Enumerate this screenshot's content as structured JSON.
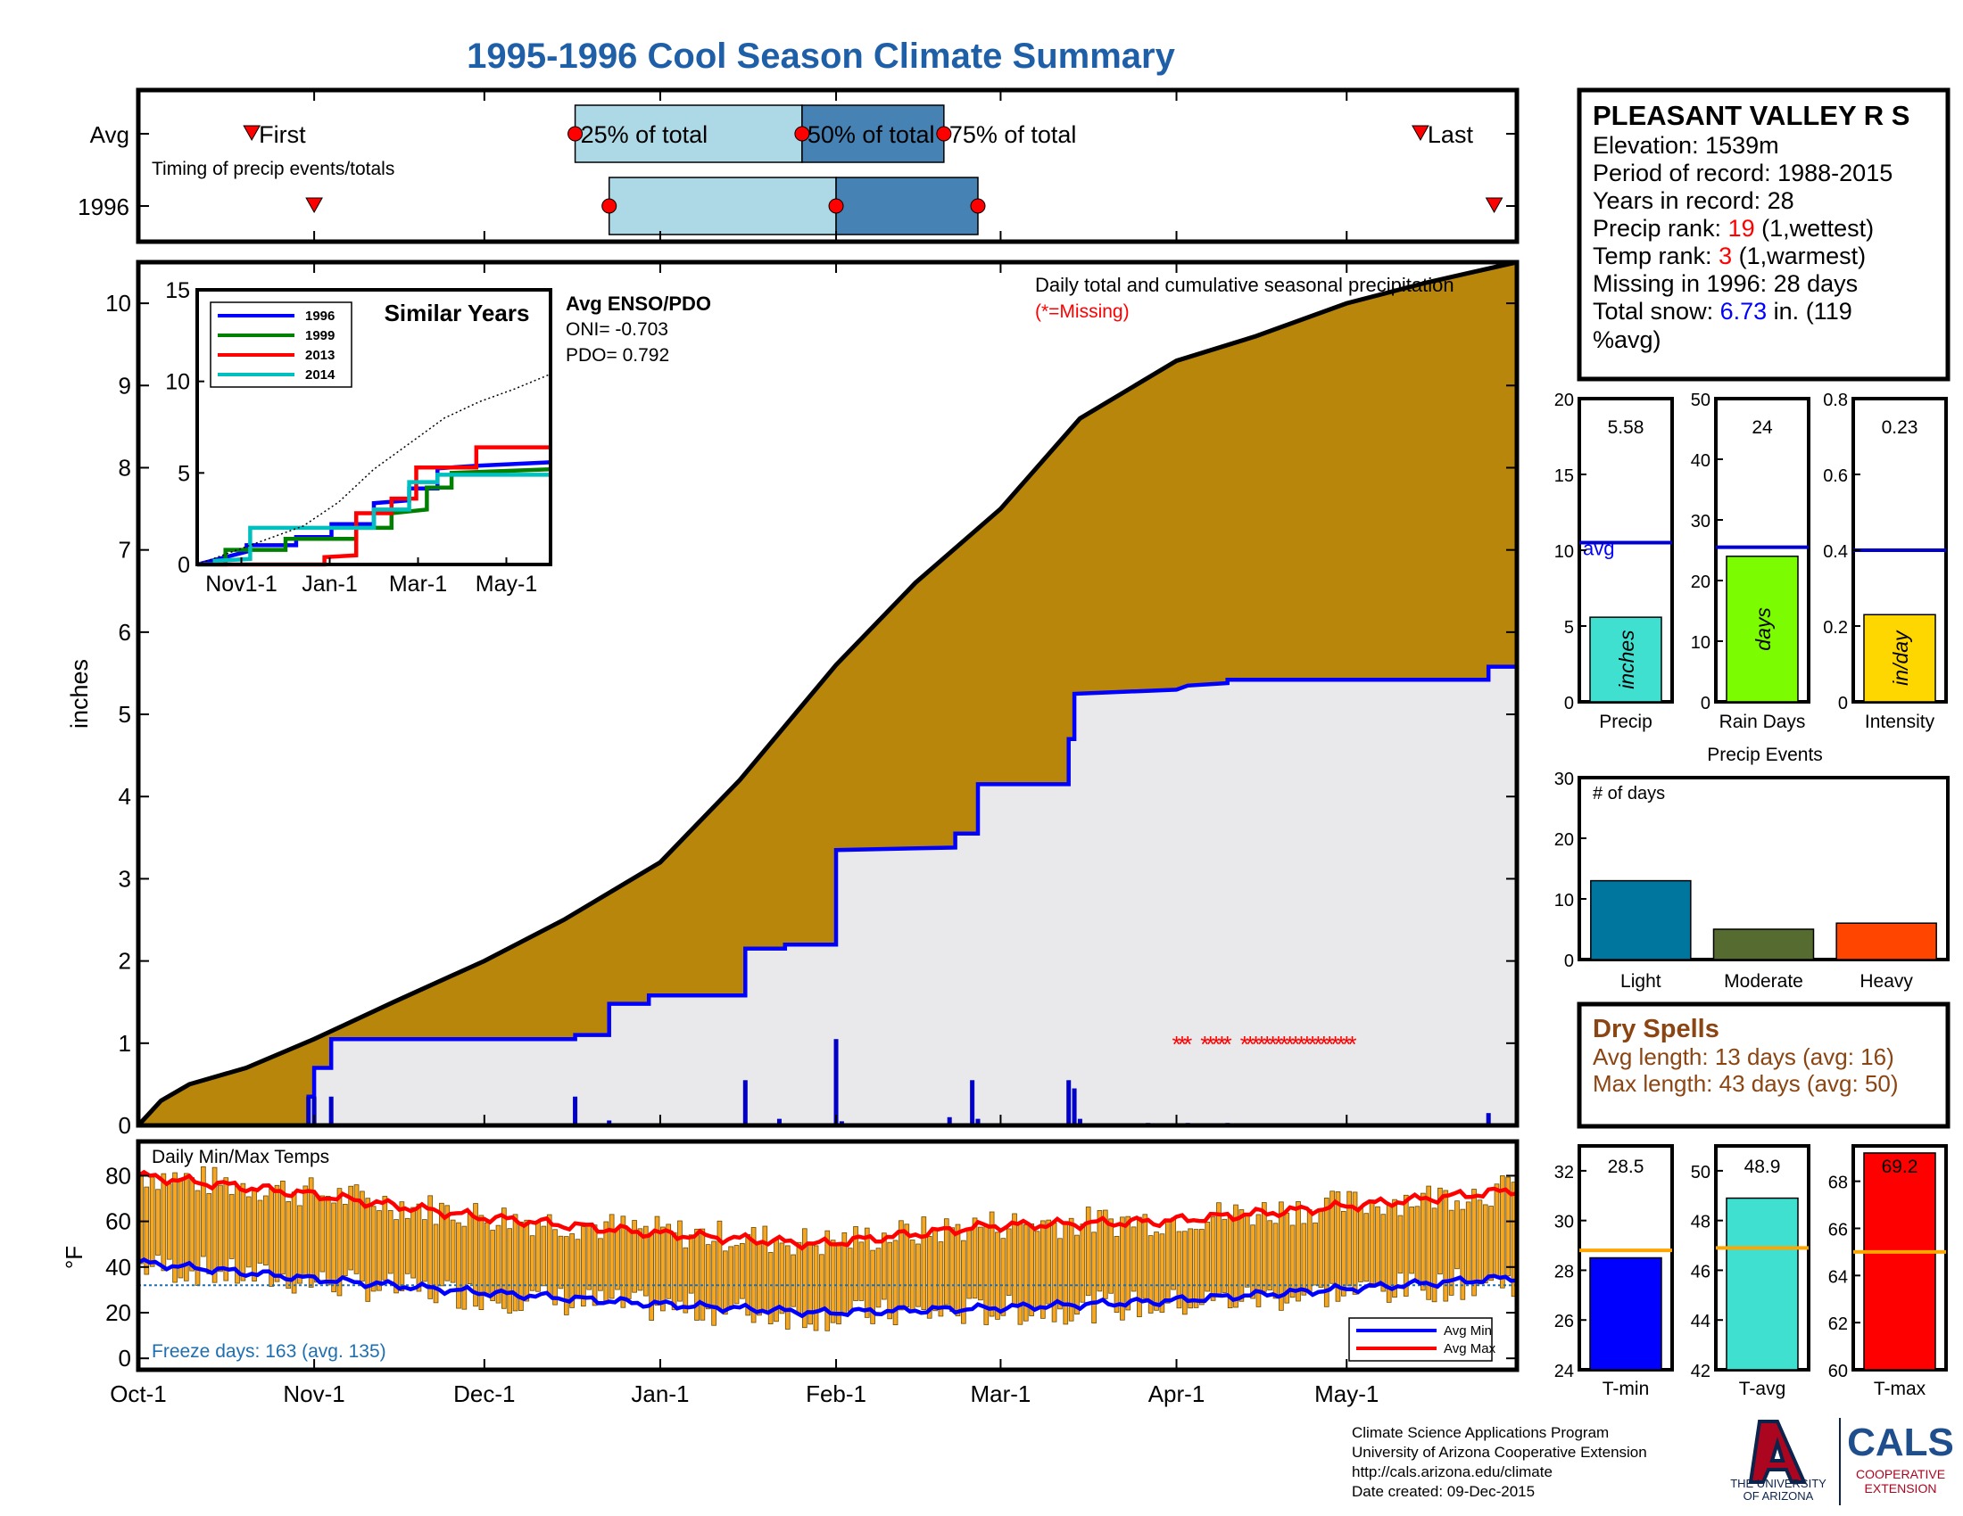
{
  "title": "1995-1996 Cool Season Climate Summary",
  "colors": {
    "title": "#1f5fa8",
    "avg_precip_fill": "#b8860b",
    "season_fill": "#e9e8ea",
    "line_1996": "#0000ff",
    "line_1999": "#008000",
    "line_2013": "#ff0000",
    "line_2014": "#00bfbf",
    "timing_light": "#add8e6",
    "timing_dark": "#4682b4",
    "marker_red": "#ff0000",
    "precip_bar": "#40e0d0",
    "raindays_bar": "#7cfc00",
    "intensity_bar": "#ffd700",
    "light_bar": "#00769e",
    "moderate_bar": "#556b2f",
    "heavy_bar": "#ff4500",
    "dry_text": "#8b4513",
    "temp_bar": "#f5a623",
    "tmin_bar": "#0000ff",
    "tavg_bar": "#40e0d0",
    "tmax_bar": "#ff0000",
    "temp_avg_line": "#ffa500"
  },
  "timing": {
    "row_labels": [
      "Avg",
      "1996"
    ],
    "avg_labels": {
      "first": "First",
      "p25": "25% of total",
      "p50": "50% of total",
      "p75": "75% of total",
      "last": "Last"
    },
    "note": "Timing of precip events/totals",
    "avg": {
      "first": "1995-10-21",
      "p25": "1995-12-17",
      "p50": "1996-01-26",
      "p75": "1996-02-20",
      "last": "1996-05-14"
    },
    "y1996": {
      "first": "1995-11-01",
      "p25": "1995-12-23",
      "p50": "1996-02-01",
      "p75": "1996-02-26",
      "last": "1996-05-27"
    }
  },
  "main_chart": {
    "ylabel": "inches",
    "ylim": [
      0,
      10.5
    ],
    "yticks": [
      0,
      1,
      2,
      3,
      4,
      5,
      6,
      7,
      8,
      9,
      10
    ],
    "xticks": [
      "Oct-1",
      "Nov-1",
      "Dec-1",
      "Jan-1",
      "Feb-1",
      "Mar-1",
      "Apr-1",
      "May-1"
    ],
    "header": "Daily total and cumulative seasonal precipitation",
    "missing_note": "(*=Missing)",
    "avg_cumulative": [
      {
        "x": "1995-10-01",
        "y": 0.0
      },
      {
        "x": "1995-10-05",
        "y": 0.3
      },
      {
        "x": "1995-10-10",
        "y": 0.5
      },
      {
        "x": "1995-10-20",
        "y": 0.7
      },
      {
        "x": "1995-11-01",
        "y": 1.05
      },
      {
        "x": "1995-11-15",
        "y": 1.5
      },
      {
        "x": "1995-12-01",
        "y": 2.0
      },
      {
        "x": "1995-12-15",
        "y": 2.5
      },
      {
        "x": "1996-01-01",
        "y": 3.2
      },
      {
        "x": "1996-01-15",
        "y": 4.2
      },
      {
        "x": "1996-02-01",
        "y": 5.6
      },
      {
        "x": "1996-02-15",
        "y": 6.6
      },
      {
        "x": "1996-03-01",
        "y": 7.5
      },
      {
        "x": "1996-03-15",
        "y": 8.6
      },
      {
        "x": "1996-04-01",
        "y": 9.3
      },
      {
        "x": "1996-04-15",
        "y": 9.6
      },
      {
        "x": "1996-05-01",
        "y": 10.0
      },
      {
        "x": "1996-05-15",
        "y": 10.25
      },
      {
        "x": "1996-05-31",
        "y": 10.5
      }
    ],
    "season_1996": [
      {
        "x": "1995-10-01",
        "y": 0.0
      },
      {
        "x": "1995-10-31",
        "y": 0.0
      },
      {
        "x": "1995-10-31",
        "y": 0.35
      },
      {
        "x": "1995-11-01",
        "y": 0.35
      },
      {
        "x": "1995-11-01",
        "y": 0.7
      },
      {
        "x": "1995-11-04",
        "y": 0.7
      },
      {
        "x": "1995-11-04",
        "y": 1.05
      },
      {
        "x": "1995-12-17",
        "y": 1.05
      },
      {
        "x": "1995-12-17",
        "y": 1.1
      },
      {
        "x": "1995-12-23",
        "y": 1.1
      },
      {
        "x": "1995-12-23",
        "y": 1.48
      },
      {
        "x": "1995-12-30",
        "y": 1.48
      },
      {
        "x": "1995-12-30",
        "y": 1.58
      },
      {
        "x": "1996-01-16",
        "y": 1.58
      },
      {
        "x": "1996-01-16",
        "y": 2.15
      },
      {
        "x": "1996-01-23",
        "y": 2.15
      },
      {
        "x": "1996-01-23",
        "y": 2.2
      },
      {
        "x": "1996-02-01",
        "y": 2.2
      },
      {
        "x": "1996-02-01",
        "y": 3.35
      },
      {
        "x": "1996-02-22",
        "y": 3.38
      },
      {
        "x": "1996-02-22",
        "y": 3.55
      },
      {
        "x": "1996-02-26",
        "y": 3.55
      },
      {
        "x": "1996-02-26",
        "y": 4.15
      },
      {
        "x": "1996-03-13",
        "y": 4.15
      },
      {
        "x": "1996-03-13",
        "y": 4.7
      },
      {
        "x": "1996-03-14",
        "y": 4.7
      },
      {
        "x": "1996-03-14",
        "y": 5.25
      },
      {
        "x": "1996-04-01",
        "y": 5.3
      },
      {
        "x": "1996-04-03",
        "y": 5.35
      },
      {
        "x": "1996-04-10",
        "y": 5.38
      },
      {
        "x": "1996-04-10",
        "y": 5.42
      },
      {
        "x": "1996-05-26",
        "y": 5.42
      },
      {
        "x": "1996-05-26",
        "y": 5.58
      },
      {
        "x": "1996-05-31",
        "y": 5.58
      }
    ],
    "daily_1996": [
      {
        "x": "1995-10-31",
        "y": 0.35
      },
      {
        "x": "1995-11-01",
        "y": 0.35
      },
      {
        "x": "1995-11-04",
        "y": 0.35
      },
      {
        "x": "1995-12-17",
        "y": 0.35
      },
      {
        "x": "1995-12-23",
        "y": 0.06
      },
      {
        "x": "1996-01-16",
        "y": 0.55
      },
      {
        "x": "1996-01-22",
        "y": 0.08
      },
      {
        "x": "1996-02-01",
        "y": 1.05
      },
      {
        "x": "1996-02-02",
        "y": 0.05
      },
      {
        "x": "1996-02-21",
        "y": 0.1
      },
      {
        "x": "1996-02-25",
        "y": 0.55
      },
      {
        "x": "1996-02-26",
        "y": 0.08
      },
      {
        "x": "1996-03-13",
        "y": 0.55
      },
      {
        "x": "1996-03-14",
        "y": 0.45
      },
      {
        "x": "1996-03-15",
        "y": 0.08
      },
      {
        "x": "1996-03-27",
        "y": 0.03
      },
      {
        "x": "1996-04-03",
        "y": 0.03
      },
      {
        "x": "1996-04-10",
        "y": 0.03
      },
      {
        "x": "1996-05-26",
        "y": 0.15
      }
    ],
    "missing_dates": [
      "1996-04-01",
      "1996-04-02",
      "1996-04-03",
      "1996-04-06",
      "1996-04-07",
      "1996-04-08",
      "1996-04-09",
      "1996-04-10",
      "1996-04-13",
      "1996-04-14",
      "1996-04-15",
      "1996-04-16",
      "1996-04-17",
      "1996-04-18",
      "1996-04-19",
      "1996-04-20",
      "1996-04-21",
      "1996-04-22",
      "1996-04-23",
      "1996-04-24",
      "1996-04-25",
      "1996-04-26",
      "1996-04-27",
      "1996-04-28",
      "1996-04-29",
      "1996-04-30",
      "1996-05-01",
      "1996-05-02"
    ]
  },
  "inset": {
    "title": "Similar Years",
    "ylim": [
      0,
      15
    ],
    "yticks": [
      0,
      5,
      10,
      15
    ],
    "xticks": [
      "Nov1-1",
      "Jan-1",
      "Mar-1",
      "May-1"
    ],
    "series": [
      {
        "name": "1996",
        "color": "#0000ff",
        "points": [
          [
            0,
            0
          ],
          [
            0.14,
            0.7
          ],
          [
            0.14,
            1.05
          ],
          [
            0.28,
            1.05
          ],
          [
            0.28,
            1.5
          ],
          [
            0.38,
            1.5
          ],
          [
            0.38,
            2.2
          ],
          [
            0.5,
            2.2
          ],
          [
            0.5,
            3.35
          ],
          [
            0.6,
            3.5
          ],
          [
            0.6,
            4.15
          ],
          [
            0.68,
            4.15
          ],
          [
            0.68,
            5.25
          ],
          [
            0.8,
            5.4
          ],
          [
            1,
            5.58
          ]
        ]
      },
      {
        "name": "1999",
        "color": "#008000",
        "points": [
          [
            0,
            0
          ],
          [
            0.08,
            0
          ],
          [
            0.08,
            0.8
          ],
          [
            0.25,
            0.8
          ],
          [
            0.25,
            1.4
          ],
          [
            0.45,
            1.4
          ],
          [
            0.45,
            2.0
          ],
          [
            0.55,
            2.0
          ],
          [
            0.55,
            2.8
          ],
          [
            0.65,
            3.0
          ],
          [
            0.65,
            4.2
          ],
          [
            0.72,
            4.2
          ],
          [
            0.72,
            5.0
          ],
          [
            1,
            5.2
          ]
        ]
      },
      {
        "name": "2013",
        "color": "#ff0000",
        "points": [
          [
            0,
            0
          ],
          [
            0.36,
            0
          ],
          [
            0.36,
            0.4
          ],
          [
            0.45,
            0.5
          ],
          [
            0.45,
            2.8
          ],
          [
            0.55,
            2.8
          ],
          [
            0.55,
            3.6
          ],
          [
            0.62,
            3.6
          ],
          [
            0.62,
            5.3
          ],
          [
            0.79,
            5.3
          ],
          [
            0.79,
            6.4
          ],
          [
            1,
            6.4
          ]
        ]
      },
      {
        "name": "2014",
        "color": "#00bfbf",
        "points": [
          [
            0,
            0
          ],
          [
            0.05,
            0
          ],
          [
            0.05,
            0.2
          ],
          [
            0.15,
            0.3
          ],
          [
            0.15,
            2.0
          ],
          [
            0.5,
            2.0
          ],
          [
            0.5,
            3.0
          ],
          [
            0.6,
            3.0
          ],
          [
            0.6,
            4.5
          ],
          [
            0.68,
            4.5
          ],
          [
            0.68,
            4.9
          ],
          [
            1,
            4.9
          ]
        ]
      },
      {
        "name": "avg",
        "color": "#000000",
        "points": [
          [
            0,
            0
          ],
          [
            0.1,
            0.7
          ],
          [
            0.2,
            1.4
          ],
          [
            0.3,
            2.1
          ],
          [
            0.4,
            3.4
          ],
          [
            0.5,
            5.2
          ],
          [
            0.6,
            6.6
          ],
          [
            0.7,
            8.0
          ],
          [
            0.8,
            8.9
          ],
          [
            0.9,
            9.6
          ],
          [
            1,
            10.4
          ]
        ]
      }
    ]
  },
  "enso": {
    "title": "Avg ENSO/PDO",
    "oni": "ONI= -0.703",
    "pdo": "PDO= 0.792"
  },
  "station": {
    "name": "PLEASANT VALLEY R S",
    "elevation": "Elevation: 1539m",
    "period": "Period of record: 1988-2015",
    "years": "Years in record: 28",
    "precip_rank_label": "Precip rank:",
    "precip_rank_value": "19",
    "precip_rank_suffix": "(1,wettest)",
    "temp_rank_label": "Temp rank:",
    "temp_rank_value": "3",
    "temp_rank_suffix": "(1,warmest)",
    "missing": "Missing in 1996: 28 days",
    "snow_label": "Total snow:",
    "snow_value": "6.73",
    "snow_suffix": "in. (119",
    "snow_suffix2": "%avg)"
  },
  "mini_bars": [
    {
      "key": "precip",
      "label": "Precip",
      "value": 5.58,
      "value_text": "5.58",
      "avg": 10.5,
      "avg_label": "avg",
      "unit": "inches",
      "ylim": [
        0,
        20
      ],
      "yticks": [
        "0",
        "5",
        "10",
        "15",
        "20"
      ],
      "color": "#40e0d0"
    },
    {
      "key": "raindays",
      "label": "Rain Days",
      "value": 24,
      "value_text": "24",
      "avg": 25.5,
      "unit": "days",
      "ylim": [
        0,
        50
      ],
      "yticks": [
        "0",
        "10",
        "20",
        "30",
        "40",
        "50"
      ],
      "color": "#7cfc00"
    },
    {
      "key": "intensity",
      "label": "Intensity",
      "value": 0.23,
      "value_text": "0.23",
      "avg": 0.4,
      "unit": "in/day",
      "ylim": [
        0,
        0.8
      ],
      "yticks": [
        "0",
        "0.2",
        "0.4",
        "0.6",
        "0.8"
      ],
      "color": "#ffd700"
    }
  ],
  "events": {
    "title": "Precip Events",
    "ylabel": "# of days",
    "ylim": [
      0,
      30
    ],
    "yticks": [
      "0",
      "10",
      "20",
      "30"
    ],
    "categories": [
      "Light",
      "Moderate",
      "Heavy"
    ],
    "values": [
      13,
      5,
      6
    ],
    "colors": [
      "#00769e",
      "#556b2f",
      "#ff4500"
    ]
  },
  "dry_spells": {
    "title": "Dry Spells",
    "avg_length": "Avg length: 13 days (avg: 16)",
    "max_length": "Max length: 43 days (avg: 50)"
  },
  "temps": {
    "title": "Daily Min/Max Temps",
    "ylabel": "°F",
    "ylim": [
      -5,
      95
    ],
    "yticks": [
      0,
      20,
      40,
      60,
      80
    ],
    "freeze_line": 32,
    "freeze_text": "Freeze days: 163 (avg. 135)",
    "legend": [
      "Avg Min",
      "Avg Max"
    ],
    "avg_max": [
      [
        0,
        80
      ],
      [
        30,
        72
      ],
      [
        60,
        62
      ],
      [
        90,
        55
      ],
      [
        120,
        50
      ],
      [
        150,
        58
      ],
      [
        180,
        60
      ],
      [
        210,
        66
      ],
      [
        240,
        73
      ],
      [
        270,
        82
      ]
    ],
    "avg_min": [
      [
        0,
        42
      ],
      [
        30,
        35
      ],
      [
        60,
        29
      ],
      [
        90,
        24
      ],
      [
        120,
        20
      ],
      [
        150,
        22
      ],
      [
        180,
        25
      ],
      [
        210,
        30
      ],
      [
        240,
        35
      ],
      [
        270,
        40
      ]
    ]
  },
  "temp_bars": [
    {
      "key": "tmin",
      "label": "T-min",
      "value": 28.5,
      "value_text": "28.5",
      "avg": 28.8,
      "ylim": [
        24,
        33
      ],
      "yticks": [
        "24",
        "26",
        "28",
        "30",
        "32"
      ],
      "color": "#0000ff"
    },
    {
      "key": "tavg",
      "label": "T-avg",
      "value": 48.9,
      "value_text": "48.9",
      "avg": 46.9,
      "ylim": [
        42,
        51
      ],
      "yticks": [
        "42",
        "44",
        "46",
        "48",
        "50"
      ],
      "color": "#40e0d0"
    },
    {
      "key": "tmax",
      "label": "T-max",
      "value": 69.2,
      "value_text": "69.2",
      "avg": 65.0,
      "ylim": [
        60,
        69.5
      ],
      "yticks": [
        "60",
        "62",
        "64",
        "66",
        "68"
      ],
      "color": "#ff0000"
    }
  ],
  "footer": {
    "line1": "Climate Science Applications Program",
    "line2": "University of Arizona Cooperative Extension",
    "line3": "http://cals.arizona.edu/climate",
    "line4": " Date created: 09-Dec-2015",
    "ua_logo_line1": "THE UNIVERSITY",
    "ua_logo_line2": "OF ARIZONA",
    "cals": "CALS",
    "cals_sub1": "COOPERATIVE",
    "cals_sub2": "EXTENSION"
  }
}
